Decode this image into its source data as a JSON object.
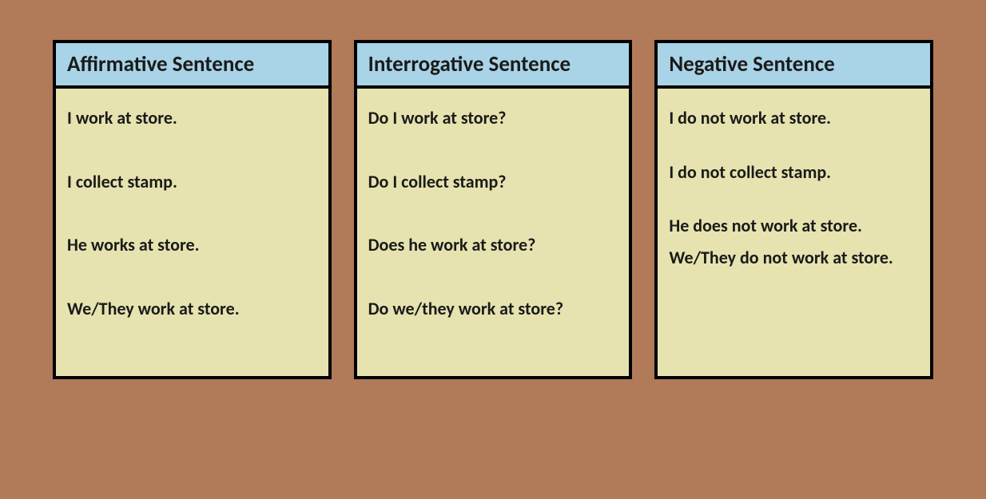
{
  "background_color": "#b17a58",
  "card_header_bg": "#a9d3e6",
  "card_body_bg": "#e6e3b0",
  "border_color": "#000000",
  "text_color": "#1a1a1a",
  "header_fontsize": 27,
  "sentence_fontsize": 22,
  "cards": [
    {
      "title": "Affirmative Sentence",
      "sentences": [
        "I work at store.",
        "I collect stamp.",
        "He works at store.",
        "We/They work at store."
      ]
    },
    {
      "title": "Interrogative Sentence",
      "sentences": [
        "Do I work at store?",
        "Do I collect stamp?",
        "Does he work   at store?",
        "Do we/they work at store?"
      ]
    },
    {
      "title": "Negative Sentence",
      "sentences": [
        "I do not work at store.",
        "I do not collect stamp.",
        "He does not work at store.",
        "We/They do not work at store."
      ]
    }
  ]
}
